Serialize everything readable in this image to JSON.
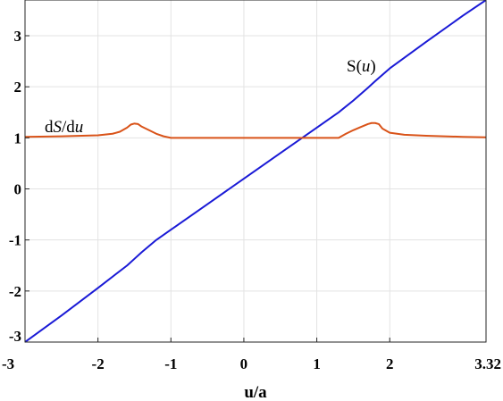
{
  "chart_data": {
    "type": "line",
    "xlabel": "u/a",
    "ylabel": "",
    "xlim": [
      -3,
      3.32
    ],
    "ylim": [
      -3,
      3.7
    ],
    "x_ticks": [
      -3,
      -2,
      -1,
      0,
      1,
      2,
      3.32
    ],
    "x_tick_labels": [
      "-3",
      "-2",
      "-1",
      "0",
      "1",
      "2",
      "3.32"
    ],
    "y_ticks": [
      -3,
      -2,
      -1,
      0,
      1,
      2,
      3
    ],
    "y_tick_labels": [
      "-3",
      "-2",
      "-1",
      "0",
      "1",
      "2",
      "3"
    ],
    "grid": true,
    "series": [
      {
        "label_prefix": "S(",
        "label_var": "u",
        "label_suffix": ")",
        "color": "#1a1ad6",
        "x": [
          -3.0,
          -2.5,
          -2.0,
          -1.6,
          -1.5,
          -1.4,
          -1.2,
          -1.0,
          -0.5,
          0.0,
          0.5,
          1.0,
          1.3,
          1.5,
          1.7,
          1.8,
          2.0,
          2.5,
          3.0,
          3.32
        ],
        "y": [
          -3.0,
          -2.48,
          -1.94,
          -1.5,
          -1.37,
          -1.24,
          -1.0,
          -0.8,
          -0.3,
          0.2,
          0.7,
          1.2,
          1.5,
          1.73,
          1.98,
          2.11,
          2.36,
          2.88,
          3.39,
          3.7
        ]
      },
      {
        "label_prefix": "d",
        "label_var": "S",
        "label_mid": "/d",
        "label_var2": "u",
        "color": "#d95319",
        "x": [
          -3.0,
          -2.5,
          -2.0,
          -1.8,
          -1.7,
          -1.6,
          -1.55,
          -1.5,
          -1.45,
          -1.4,
          -1.3,
          -1.2,
          -1.1,
          -1.0,
          0.0,
          1.0,
          1.3,
          1.4,
          1.5,
          1.6,
          1.7,
          1.75,
          1.8,
          1.85,
          1.9,
          2.0,
          2.2,
          2.5,
          3.0,
          3.32
        ],
        "y": [
          1.02,
          1.03,
          1.05,
          1.08,
          1.12,
          1.2,
          1.26,
          1.28,
          1.27,
          1.22,
          1.15,
          1.08,
          1.03,
          1.0,
          1.0,
          1.0,
          1.0,
          1.08,
          1.15,
          1.21,
          1.27,
          1.29,
          1.29,
          1.27,
          1.18,
          1.1,
          1.06,
          1.04,
          1.02,
          1.01
        ]
      }
    ]
  }
}
